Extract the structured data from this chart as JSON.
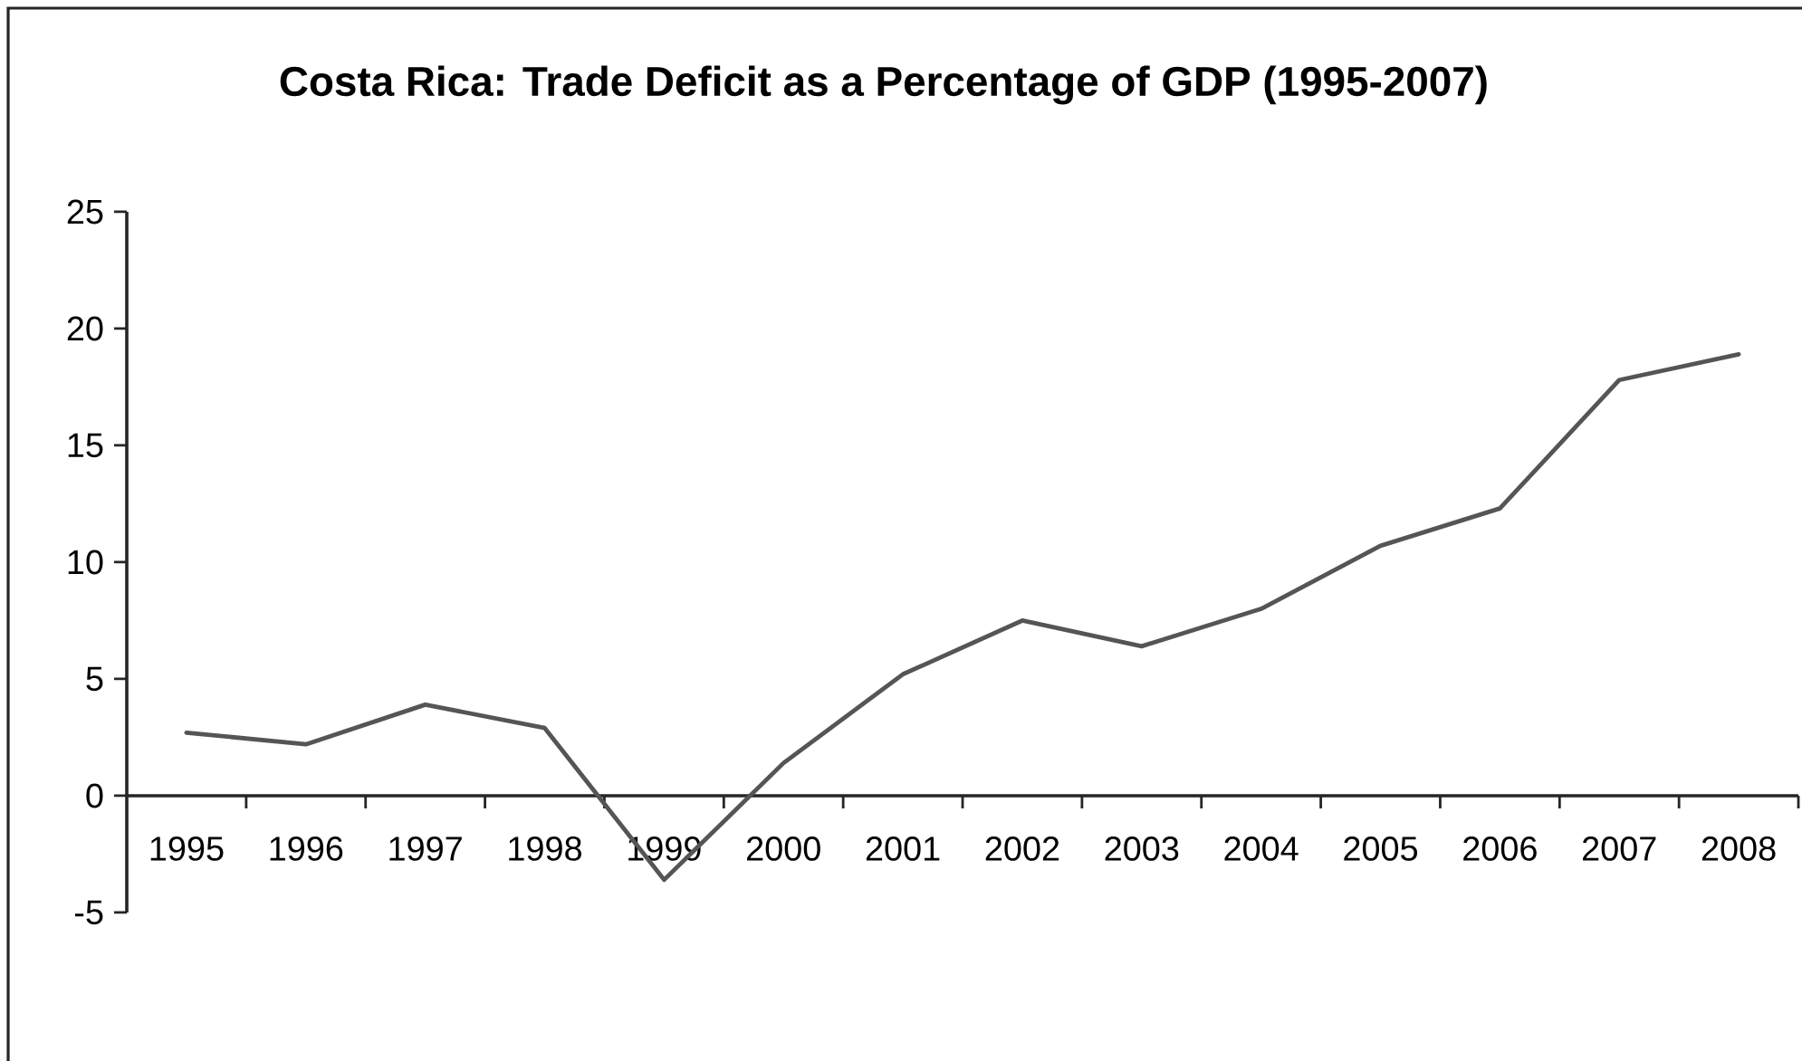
{
  "chart_data": {
    "type": "line",
    "title": "Costa Rica: Trade Deficit as a Percentage of GDP (1995-2007)",
    "categories": [
      "1995",
      "1996",
      "1997",
      "1998",
      "1999",
      "2000",
      "2001",
      "2002",
      "2003",
      "2004",
      "2005",
      "2006",
      "2007",
      "2008"
    ],
    "values": [
      2.7,
      2.2,
      3.9,
      2.9,
      -3.6,
      1.4,
      5.2,
      7.5,
      6.4,
      8.0,
      10.7,
      12.3,
      17.8,
      18.9
    ],
    "color": "#555555",
    "ylim": [
      -5,
      25
    ],
    "yticks": [
      -5,
      0,
      5,
      10,
      15,
      20,
      25
    ]
  }
}
